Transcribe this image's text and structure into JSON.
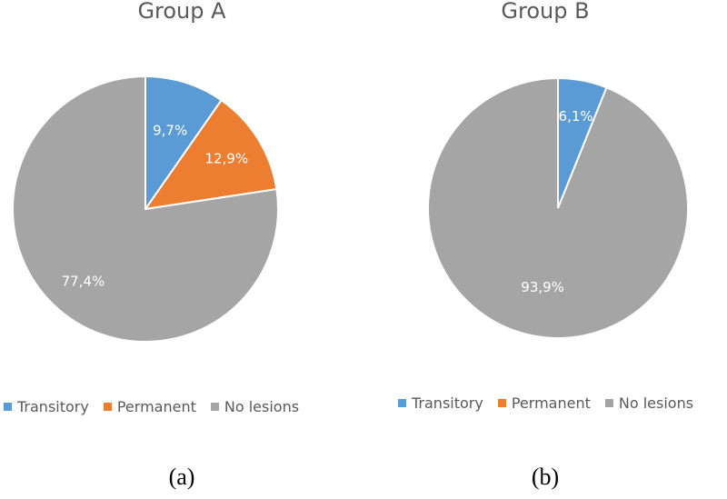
{
  "chart_data": [
    {
      "type": "pie",
      "title": "Group A",
      "categories": [
        "Transitory",
        "Permanent",
        "No lesions"
      ],
      "values": [
        9.7,
        12.9,
        77.4
      ],
      "labels": [
        "9,7%",
        "12,9%",
        "77,4%"
      ],
      "colors": [
        "#5b9bd5",
        "#ed7d31",
        "#a5a5a5"
      ],
      "legend": [
        "Transitory",
        "Permanent",
        "No lesions"
      ],
      "legend_position": "bottom",
      "caption": "(a)"
    },
    {
      "type": "pie",
      "title": "Group B",
      "categories": [
        "Transitory",
        "Permanent",
        "No lesions"
      ],
      "values": [
        6.1,
        0,
        93.9
      ],
      "labels": [
        "6,1%",
        "",
        "93,9%"
      ],
      "colors": [
        "#5b9bd5",
        "#ed7d31",
        "#a5a5a5"
      ],
      "legend": [
        "Transitory",
        "Permanent",
        "No lesions"
      ],
      "legend_position": "bottom",
      "caption": "(b)"
    }
  ]
}
